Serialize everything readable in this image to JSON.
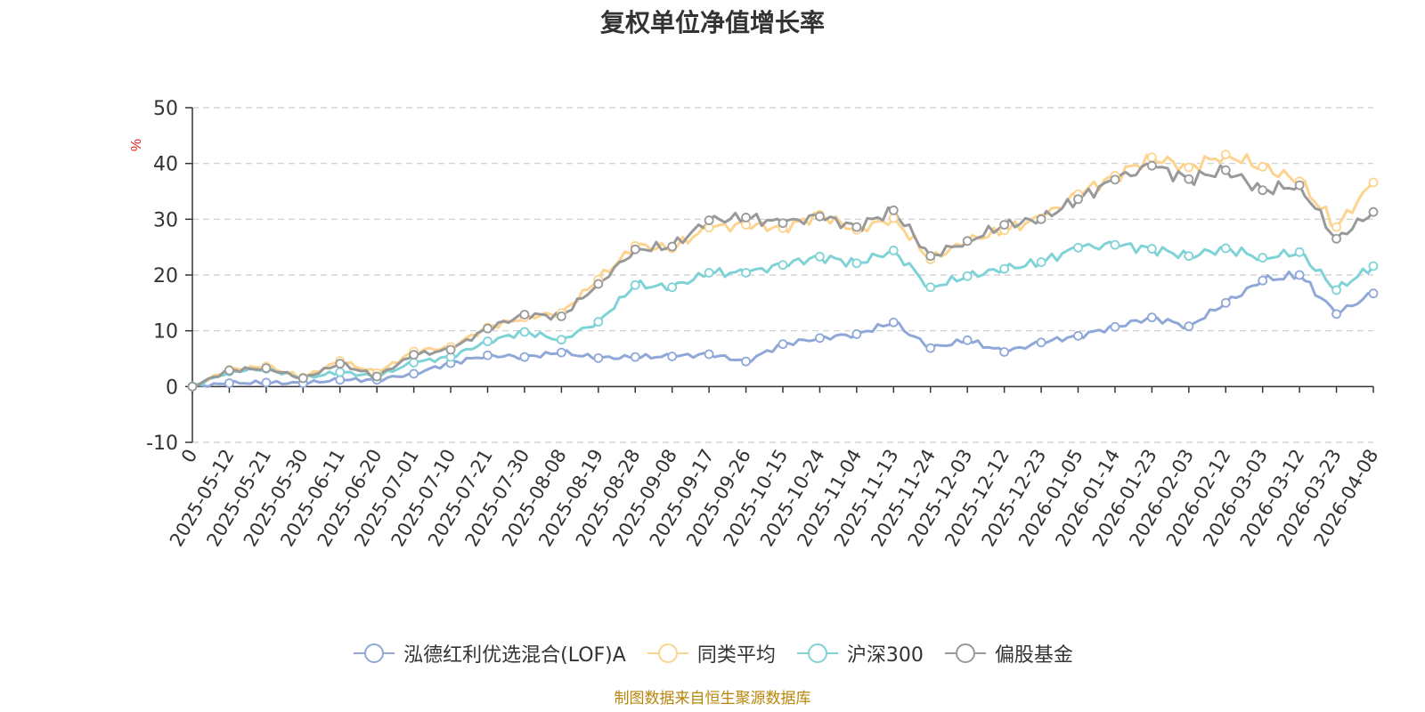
{
  "chart_data": {
    "type": "line",
    "title": "复权单位净值增长率",
    "ylabel": "%",
    "xlabel": "",
    "ylim": [
      -10,
      50
    ],
    "yticks": [
      -10,
      0,
      10,
      20,
      30,
      40,
      50
    ],
    "grid": true,
    "legend_position": "bottom",
    "x": [
      "0",
      "2025-05-12",
      "2025-05-21",
      "2025-05-30",
      "2025-06-11",
      "2025-06-20",
      "2025-07-01",
      "2025-07-10",
      "2025-07-21",
      "2025-07-30",
      "2025-08-08",
      "2025-08-19",
      "2025-08-28",
      "2025-09-08",
      "2025-09-17",
      "2025-09-26",
      "2025-10-15",
      "2025-10-24",
      "2025-11-04",
      "2025-11-13",
      "2025-11-24",
      "2025-12-03",
      "2025-12-12",
      "2025-12-23",
      "2026-01-05",
      "2026-01-14",
      "2026-01-23",
      "2026-02-03",
      "2026-02-12",
      "2026-03-03",
      "2026-03-12",
      "2026-03-23",
      "2026-04-08"
    ],
    "series": [
      {
        "name": "泓德红利优选混合(LOF)A",
        "color": "#8fa8d8",
        "values": [
          0,
          0.6,
          0.7,
          0.6,
          1.2,
          1.2,
          2.3,
          4.2,
          5.6,
          5.3,
          6.1,
          5.1,
          5.3,
          5.4,
          5.8,
          4.5,
          7.6,
          8.7,
          9.4,
          11.5,
          6.9,
          8.3,
          6.2,
          7.9,
          9.1,
          10.7,
          12.4,
          10.8,
          15.0,
          19.0,
          20.0,
          13.0,
          16.7
        ]
      },
      {
        "name": "同类平均",
        "color": "#fcd490",
        "values": [
          0,
          3.0,
          3.6,
          1.6,
          4.6,
          2.4,
          6.3,
          7.1,
          10.6,
          12.4,
          13.2,
          19.2,
          25.2,
          24.8,
          28.5,
          29.0,
          28.4,
          30.8,
          28.1,
          30.2,
          22.8,
          26.1,
          28.0,
          30.2,
          34.5,
          37.8,
          41.1,
          39.3,
          41.6,
          39.4,
          36.8,
          28.6,
          36.6
        ]
      },
      {
        "name": "沪深300",
        "color": "#7fd3d6",
        "values": [
          0,
          2.7,
          3.2,
          1.5,
          2.6,
          1.8,
          4.3,
          5.3,
          8.1,
          9.8,
          8.4,
          11.6,
          18.2,
          17.8,
          20.4,
          20.4,
          21.8,
          23.3,
          22.1,
          24.4,
          17.8,
          19.8,
          21.1,
          22.3,
          24.9,
          25.4,
          24.7,
          23.4,
          24.8,
          23.1,
          24.1,
          17.3,
          21.6
        ]
      },
      {
        "name": "偏股基金",
        "color": "#999999",
        "values": [
          0,
          2.9,
          3.3,
          1.5,
          4.1,
          1.8,
          5.7,
          6.6,
          10.4,
          12.9,
          12.6,
          18.4,
          24.6,
          25.1,
          29.8,
          30.3,
          29.3,
          30.5,
          28.6,
          31.6,
          23.4,
          26.1,
          29.0,
          30.0,
          33.6,
          37.1,
          39.6,
          37.2,
          38.8,
          35.2,
          36.1,
          26.5,
          31.3
        ]
      }
    ]
  },
  "footer_text": "制图数据来自恒生聚源数据库"
}
